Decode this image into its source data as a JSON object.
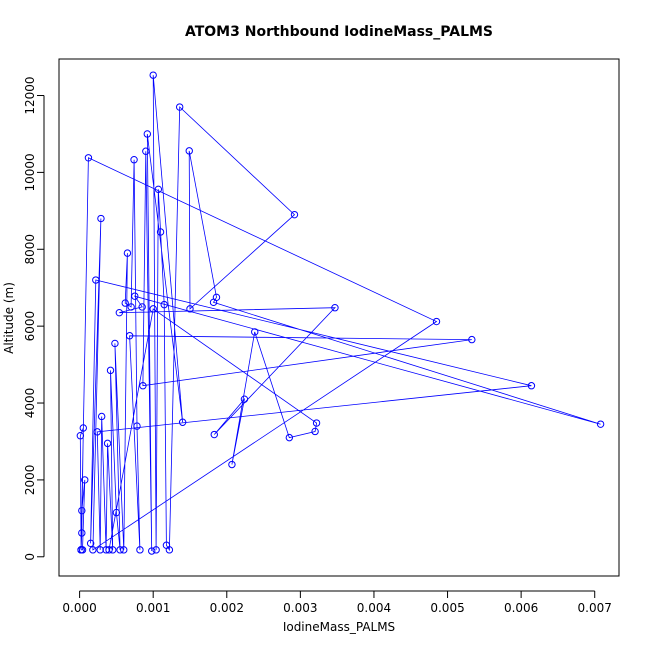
{
  "chart_data": {
    "type": "scatter",
    "title": "ATOM3 Northbound IodineMass_PALMS",
    "xlabel": "IodineMass_PALMS",
    "ylabel": "Altitude (m)",
    "xlim": [
      -0.00028,
      0.00733
    ],
    "ylim": [
      -500,
      12950
    ],
    "xticks": [
      0.0,
      0.001,
      0.002,
      0.003,
      0.004,
      0.005,
      0.006,
      0.007
    ],
    "xtick_labels": [
      "0.000",
      "0.001",
      "0.002",
      "0.003",
      "0.004",
      "0.005",
      "0.006",
      "0.007"
    ],
    "yticks": [
      0,
      2000,
      4000,
      6000,
      8000,
      10000,
      12000
    ],
    "ytick_labels": [
      "0",
      "2000",
      "4000",
      "6000",
      "8000",
      "10000",
      "12000"
    ],
    "grid": false,
    "line_connected": true,
    "marker": "open-circle",
    "color": "#0000ff",
    "series": [
      {
        "points": [
          [
            2e-05,
            180
          ],
          [
            1e-05,
            3150
          ],
          [
            5e-05,
            3350
          ],
          [
            3e-05,
            620
          ],
          [
            2e-05,
            180
          ],
          [
            3e-05,
            1200
          ],
          [
            7e-05,
            2000
          ],
          [
            4e-05,
            180
          ],
          [
            2e-05,
            180
          ],
          [
            0.00012,
            10380
          ],
          [
            0.00485,
            6120
          ],
          [
            0.00018,
            180
          ],
          [
            0.00029,
            8800
          ],
          [
            0.00015,
            350
          ],
          [
            0.00022,
            7200
          ],
          [
            0.00614,
            4450
          ],
          [
            0.00024,
            3250
          ],
          [
            0.00028,
            180
          ],
          [
            0.0003,
            3650
          ],
          [
            0.00036,
            180
          ],
          [
            0.00038,
            2950
          ],
          [
            0.00045,
            180
          ],
          [
            0.00042,
            4850
          ],
          [
            0.0005,
            1150
          ],
          [
            0.00055,
            180
          ],
          [
            0.00048,
            5550
          ],
          [
            0.0006,
            180
          ],
          [
            0.00065,
            7900
          ],
          [
            0.00062,
            6600
          ],
          [
            0.0007,
            6500
          ],
          [
            0.00074,
            10330
          ],
          [
            0.00078,
            3400
          ],
          [
            0.00082,
            180
          ],
          [
            0.00068,
            5750
          ],
          [
            0.00533,
            5650
          ],
          [
            0.00086,
            4450
          ],
          [
            0.0009,
            10550
          ],
          [
            0.00098,
            150
          ],
          [
            0.00092,
            11000
          ],
          [
            0.0014,
            3500
          ],
          [
            0.001,
            12530
          ],
          [
            0.00104,
            180
          ],
          [
            0.00107,
            9560
          ],
          [
            0.0011,
            8450
          ],
          [
            0.00115,
            6560
          ],
          [
            0.00118,
            300
          ],
          [
            0.00122,
            180
          ],
          [
            0.00136,
            11700
          ],
          [
            0.00292,
            8900
          ],
          [
            0.0015,
            6450
          ],
          [
            0.00149,
            10560
          ],
          [
            0.00186,
            6750
          ],
          [
            0.00182,
            6620
          ],
          [
            0.00708,
            3450
          ],
          [
            0.00075,
            6780
          ],
          [
            0.00085,
            6500
          ],
          [
            0.00054,
            6350
          ],
          [
            0.00347,
            6480
          ],
          [
            0.00183,
            3180
          ],
          [
            0.00224,
            4100
          ],
          [
            0.00207,
            2400
          ],
          [
            0.00238,
            5850
          ],
          [
            0.00285,
            3100
          ],
          [
            0.0032,
            3260
          ],
          [
            0.00322,
            3480
          ],
          [
            0.001,
            6450
          ],
          [
            0.0004,
            180
          ]
        ]
      }
    ]
  }
}
